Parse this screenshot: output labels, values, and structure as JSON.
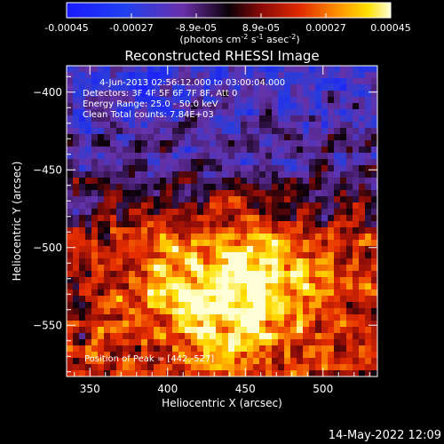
{
  "chart_data": {
    "type": "heatmap",
    "title": "Reconstructed RHESSI Image",
    "xlabel": "Heliocentric X (arcsec)",
    "ylabel": "Heliocentric Y (arcsec)",
    "xlim": [
      335,
      535
    ],
    "ylim": [
      -583,
      -383
    ],
    "xticks": [
      350,
      400,
      450,
      500
    ],
    "yticks": [
      -400,
      -450,
      -500,
      -550
    ],
    "colorbar": {
      "range": [
        -0.00045,
        0.00045
      ],
      "tick_labels": [
        "-0.00045",
        "-0.00027",
        "-8.9e-05",
        "8.9e-05",
        "0.00027",
        "0.00045"
      ],
      "units_base": "(photons cm",
      "units_exp1": "-2",
      "units_mid1": " s",
      "units_exp2": "-1",
      "units_mid2": " asec",
      "units_exp3": "-2",
      "units_end": ")"
    },
    "info_lines": [
      "4-Jun-2013 02:56:12.000 to 03:00:04.000",
      "Detectors: 3F 4F 5F 6F 7F 8F, Att 0",
      "Energy Range: 25.0 - 50.0 keV",
      "Clean     Total counts: 7.84E+03"
    ],
    "peak_label": "Position of Peak = [442,-527]",
    "peak": [
      442,
      -527
    ],
    "grid": false
  },
  "footer": {
    "date": "14-May-2022 12:09"
  }
}
